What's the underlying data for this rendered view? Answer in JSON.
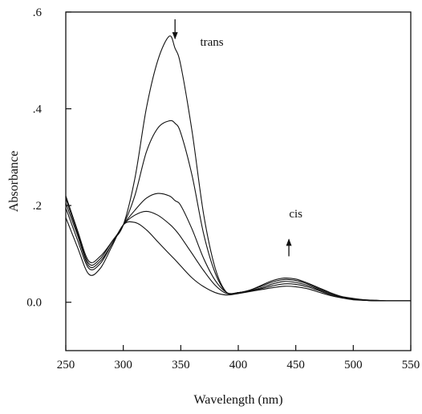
{
  "chart_data": {
    "type": "line",
    "xlabel": "Wavelength (nm)",
    "ylabel": "Absorbance",
    "xlim": [
      250,
      550
    ],
    "ylim": [
      -0.1,
      0.6
    ],
    "x_ticks": [
      250,
      300,
      350,
      400,
      450,
      500,
      550
    ],
    "x_tick_labels": [
      "250",
      "300",
      "350",
      "400",
      "450",
      "500",
      "550"
    ],
    "y_ticks": [
      0.0,
      0.2,
      0.4,
      0.6
    ],
    "y_tick_labels": [
      "0.0",
      ".2",
      ".4",
      ".6"
    ],
    "grid": false,
    "legend": "none",
    "x": [
      250,
      260,
      270,
      280,
      290,
      300,
      310,
      320,
      330,
      340,
      345,
      350,
      360,
      370,
      380,
      390,
      400,
      410,
      420,
      430,
      440,
      450,
      460,
      470,
      480,
      490,
      500,
      510,
      520,
      530,
      540,
      550
    ],
    "series": [
      {
        "values": [
          0.22,
          0.15,
          0.085,
          0.095,
          0.125,
          0.16,
          0.255,
          0.4,
          0.5,
          0.55,
          0.525,
          0.49,
          0.35,
          0.18,
          0.07,
          0.02,
          0.02,
          0.025,
          0.035,
          0.045,
          0.05,
          0.048,
          0.04,
          0.03,
          0.02,
          0.012,
          0.008,
          0.005,
          0.004,
          0.003,
          0.003,
          0.003
        ]
      },
      {
        "values": [
          0.215,
          0.145,
          0.08,
          0.09,
          0.125,
          0.16,
          0.22,
          0.31,
          0.36,
          0.375,
          0.37,
          0.35,
          0.26,
          0.14,
          0.06,
          0.02,
          0.02,
          0.025,
          0.033,
          0.042,
          0.047,
          0.045,
          0.038,
          0.028,
          0.019,
          0.011,
          0.007,
          0.005,
          0.004,
          0.003,
          0.003,
          0.003
        ]
      },
      {
        "values": [
          0.205,
          0.14,
          0.075,
          0.085,
          0.12,
          0.16,
          0.19,
          0.215,
          0.225,
          0.22,
          0.21,
          0.2,
          0.15,
          0.09,
          0.045,
          0.02,
          0.02,
          0.024,
          0.03,
          0.038,
          0.043,
          0.041,
          0.035,
          0.026,
          0.017,
          0.01,
          0.006,
          0.004,
          0.003,
          0.003,
          0.003,
          0.003
        ]
      },
      {
        "values": [
          0.195,
          0.13,
          0.07,
          0.08,
          0.12,
          0.16,
          0.18,
          0.188,
          0.18,
          0.162,
          0.15,
          0.135,
          0.1,
          0.065,
          0.035,
          0.018,
          0.02,
          0.023,
          0.028,
          0.034,
          0.038,
          0.037,
          0.032,
          0.024,
          0.016,
          0.01,
          0.006,
          0.004,
          0.003,
          0.003,
          0.003,
          0.003
        ]
      },
      {
        "values": [
          0.175,
          0.115,
          0.058,
          0.07,
          0.115,
          0.16,
          0.165,
          0.15,
          0.125,
          0.1,
          0.088,
          0.075,
          0.05,
          0.032,
          0.02,
          0.015,
          0.018,
          0.022,
          0.026,
          0.03,
          0.033,
          0.032,
          0.028,
          0.021,
          0.014,
          0.009,
          0.005,
          0.004,
          0.003,
          0.003,
          0.003,
          0.003
        ]
      }
    ],
    "annotations": [
      {
        "text": "trans",
        "x": 377,
        "y": 0.53
      },
      {
        "text": "cis",
        "x": 450,
        "y": 0.175
      }
    ],
    "arrows": [
      {
        "label": "trans-decrease-arrow",
        "x": 345,
        "y_from": 0.585,
        "y_to": 0.545
      },
      {
        "label": "cis-increase-arrow",
        "x": 444,
        "y_from": 0.095,
        "y_to": 0.13
      }
    ]
  }
}
